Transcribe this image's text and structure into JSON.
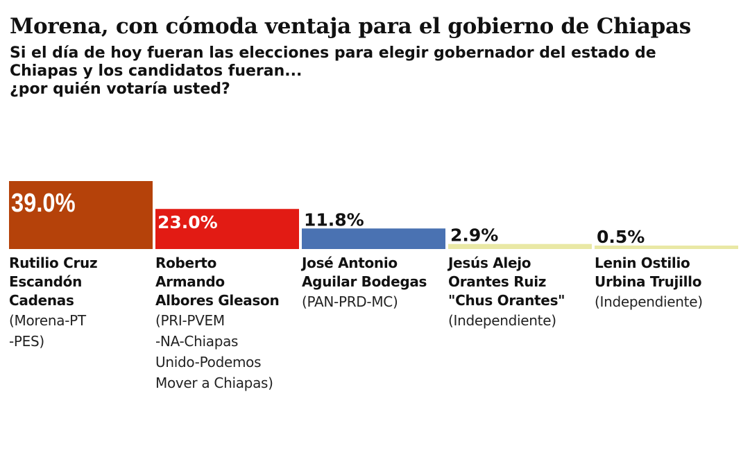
{
  "title": "Morena, con cómoda ventaja para el gobierno de Chiapas",
  "subtitle_lines": [
    "Si el día de hoy fueran las elecciones para elegir gobernador del estado de",
    "Chiapas y los candidatos fueran...",
    "¿por quién votaría usted?"
  ],
  "chart_data": {
    "type": "bar",
    "title": "Morena, con cómoda ventaja para el gobierno de Chiapas",
    "categories": [
      "Rutilio Cruz Escandón Cadenas",
      "Roberto Armando Albores Gleason",
      "José Antonio Aguilar Bodegas",
      "Jesús Alejo Orantes Ruiz \"Chus Orantes\"",
      "Lenin Ostilio Urbina Trujillo"
    ],
    "values": [
      39.0,
      23.0,
      11.8,
      2.9,
      0.5
    ],
    "value_labels": [
      "39.0%",
      "23.0%",
      "11.8%",
      "2.9%",
      "0.5%"
    ],
    "colors": [
      "#b5420a",
      "#e21b14",
      "#4a72b2",
      "#e9e8a5",
      "#e9e8a5"
    ],
    "label_colors": [
      "#ffffff",
      "#ffffff",
      "#111111",
      "#111111",
      "#111111"
    ],
    "ylim": [
      0,
      39.0
    ],
    "grid": false,
    "legend": "none"
  },
  "candidates": [
    {
      "name_lines": [
        "Rutilio Cruz",
        "Escandón",
        "Cadenas"
      ],
      "party_lines": [
        "(Morena-PT",
        "-PES)"
      ]
    },
    {
      "name_lines": [
        "Roberto",
        "Armando",
        "Albores Gleason"
      ],
      "party_lines": [
        "(PRI-PVEM",
        "-NA-Chiapas",
        "Unido-Podemos",
        "Mover a Chiapas)"
      ]
    },
    {
      "name_lines": [
        "José Antonio",
        "Aguilar Bodegas"
      ],
      "party_lines": [
        "(PAN-PRD-MC)"
      ]
    },
    {
      "name_lines": [
        "Jesús Alejo",
        "Orantes Ruiz",
        "\"Chus Orantes\""
      ],
      "party_lines": [
        "(Independiente)"
      ]
    },
    {
      "name_lines": [
        "Lenin Ostilio",
        "Urbina Trujillo"
      ],
      "party_lines": [
        "(Independiente)"
      ]
    }
  ]
}
